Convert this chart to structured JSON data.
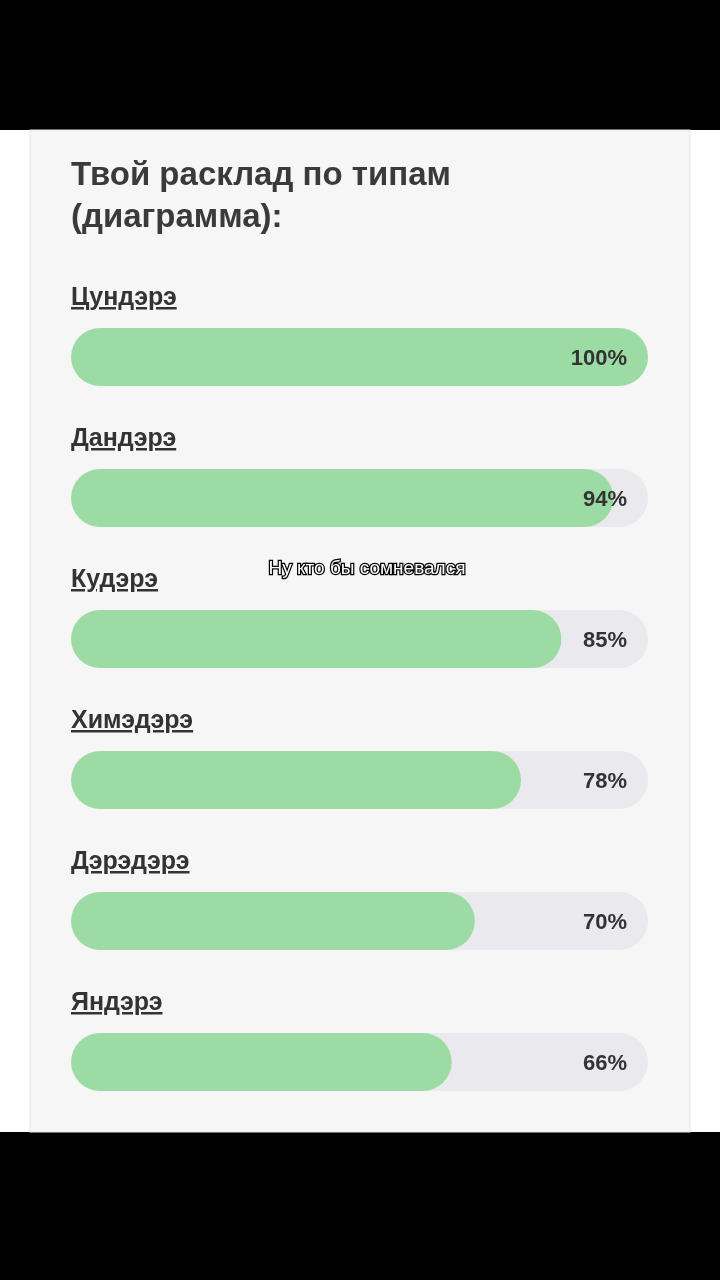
{
  "chart_data": {
    "type": "bar",
    "orientation": "horizontal",
    "title": "Твой расклад по типам (диаграмма):",
    "categories": [
      "Цундэрэ",
      "Дандэрэ",
      "Кудэрэ",
      "Химэдэрэ",
      "Дэрэдэрэ",
      "Яндэрэ"
    ],
    "values": [
      100,
      94,
      85,
      78,
      70,
      66
    ],
    "value_labels": [
      "100%",
      "94%",
      "85%",
      "78%",
      "70%",
      "66%"
    ],
    "color": "#9cdca4",
    "xlim": [
      0,
      100
    ],
    "annotations": [
      "Ну кто бы сомневался"
    ]
  }
}
